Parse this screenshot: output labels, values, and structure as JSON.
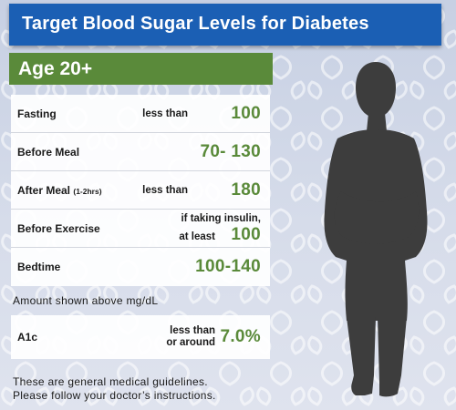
{
  "title": "Target Blood Sugar Levels for Diabetes",
  "age_group": "Age 20+",
  "rows": [
    {
      "label": "Fasting",
      "label_sub": "",
      "qualifier": "less than",
      "value": "100"
    },
    {
      "label": "Before Meal",
      "label_sub": "",
      "qualifier": "",
      "value": "70- 130"
    },
    {
      "label": "After Meal",
      "label_sub": "(1-2hrs)",
      "qualifier": "less than",
      "value": "180"
    },
    {
      "label": "Before Exercise",
      "label_sub": "",
      "qualifier_line1": "if taking insulin,",
      "qualifier_line2": "at least",
      "value": "100"
    },
    {
      "label": "Bedtime",
      "label_sub": "",
      "qualifier": "",
      "value": "100-140"
    }
  ],
  "units_note": "Amount shown above mg/dL",
  "a1c": {
    "label": "A1c",
    "qualifier_line1": "less than",
    "qualifier_line2": "or around",
    "value": "7.0%"
  },
  "disclaimer": {
    "line1": "These are general medical guidelines.",
    "line2": "Please follow your doctor’s instructions."
  },
  "colors": {
    "title_bar": "#1b5fb4",
    "age_bar": "#5a8a3a",
    "value_text": "#5a8a3a",
    "background": "#d2d9e8",
    "silhouette": "#3d3d3d"
  },
  "icons": {
    "figure": "person-silhouette-icon",
    "background": "leaf-pattern"
  }
}
